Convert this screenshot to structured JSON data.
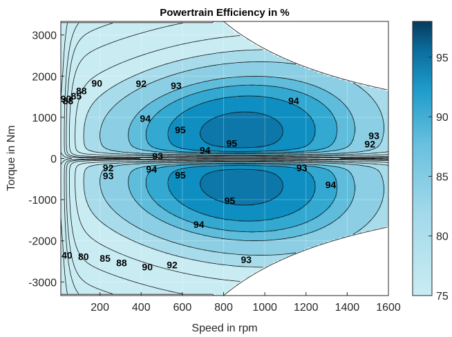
{
  "chart_data": {
    "type": "contour",
    "title": "Powertrain Efficiency in %",
    "xlabel": "Speed in rpm",
    "ylabel": "Torque in Nm",
    "xlim": [
      10,
      1600
    ],
    "ylim": [
      -3330,
      3330
    ],
    "x_ticks": [
      200,
      400,
      600,
      800,
      1000,
      1200,
      1400,
      1600
    ],
    "y_ticks": [
      -3000,
      -2000,
      -1000,
      0,
      1000,
      2000,
      3000
    ],
    "grid": true,
    "colorbar": {
      "range": [
        75,
        98
      ],
      "ticks": [
        75,
        80,
        85,
        90,
        95
      ],
      "low_color": "#c9ecf3",
      "high_color": "#083a5c"
    },
    "levels": [
      {
        "value": 88,
        "color": "#a9dceb"
      },
      {
        "value": 90,
        "color": "#8ccfe4"
      },
      {
        "value": 92,
        "color": "#5fbddb"
      },
      {
        "value": 93,
        "color": "#33a9d2"
      },
      {
        "value": 94,
        "color": "#0f8fc1"
      },
      {
        "value": 95,
        "color": "#0c77a8"
      },
      {
        "value": 96,
        "color": "#085f8a"
      }
    ],
    "base_color": "#c9ecf3",
    "contour_labels": [
      {
        "text": "90",
        "x": 35,
        "y": 1450
      },
      {
        "text": "88",
        "x": 45,
        "y": 1400
      },
      {
        "text": "85",
        "x": 85,
        "y": 1520
      },
      {
        "text": "88",
        "x": 110,
        "y": 1640
      },
      {
        "text": "90",
        "x": 185,
        "y": 1830
      },
      {
        "text": "92",
        "x": 400,
        "y": 1820
      },
      {
        "text": "93",
        "x": 570,
        "y": 1770
      },
      {
        "text": "94",
        "x": 420,
        "y": 970
      },
      {
        "text": "95",
        "x": 590,
        "y": 700
      },
      {
        "text": "95",
        "x": 840,
        "y": 370
      },
      {
        "text": "94",
        "x": 1140,
        "y": 1400
      },
      {
        "text": "94",
        "x": 710,
        "y": 200
      },
      {
        "text": "93",
        "x": 1530,
        "y": 550
      },
      {
        "text": "92",
        "x": 1510,
        "y": 350
      },
      {
        "text": "93",
        "x": 480,
        "y": 60
      },
      {
        "text": "93",
        "x": 1180,
        "y": -230
      },
      {
        "text": "92",
        "x": 240,
        "y": -230
      },
      {
        "text": "93",
        "x": 240,
        "y": -420
      },
      {
        "text": "94",
        "x": 450,
        "y": -260
      },
      {
        "text": "95",
        "x": 590,
        "y": -400
      },
      {
        "text": "95",
        "x": 830,
        "y": -1020
      },
      {
        "text": "94",
        "x": 1320,
        "y": -640
      },
      {
        "text": "94",
        "x": 680,
        "y": -1600
      },
      {
        "text": "92",
        "x": 550,
        "y": -2580
      },
      {
        "text": "93",
        "x": 910,
        "y": -2460
      },
      {
        "text": "90",
        "x": 430,
        "y": -2630
      },
      {
        "text": "88",
        "x": 305,
        "y": -2530
      },
      {
        "text": "85",
        "x": 225,
        "y": -2420
      },
      {
        "text": "80",
        "x": 120,
        "y": -2380
      },
      {
        "text": "40",
        "x": 40,
        "y": -2350
      }
    ]
  }
}
